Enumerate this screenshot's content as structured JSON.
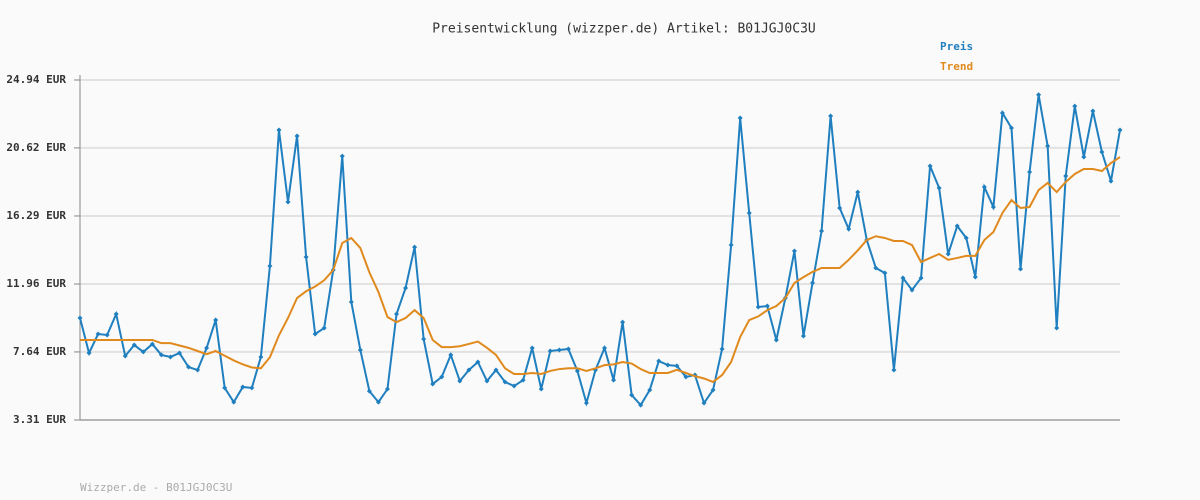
{
  "chart_data": {
    "type": "line",
    "title": "Preisentwicklung (wizzper.de) Artikel: B01JGJ0C3U",
    "footer": "Wizzper.de - B01JGJ0C3U",
    "ylim": [
      3.31,
      24.94
    ],
    "yticks": [
      {
        "value": 3.31,
        "label": "3.31 EUR"
      },
      {
        "value": 7.64,
        "label": "7.64 EUR"
      },
      {
        "value": 11.96,
        "label": "11.96 EUR"
      },
      {
        "value": 16.29,
        "label": "16.29 EUR"
      },
      {
        "value": 20.62,
        "label": "20.62 EUR"
      },
      {
        "value": 24.94,
        "label": "24.94 EUR"
      }
    ],
    "grid": true,
    "legend": "top-right",
    "series": [
      {
        "name": "Preis",
        "color": "#1f7fbf",
        "markers": true,
        "values": [
          9.8,
          7.57,
          8.78,
          8.72,
          10.05,
          7.38,
          8.08,
          7.64,
          8.14,
          7.45,
          7.32,
          7.57,
          6.68,
          6.49,
          7.89,
          9.67,
          5.35,
          4.45,
          5.41,
          5.35,
          7.32,
          13.11,
          21.76,
          17.18,
          21.38,
          13.68,
          8.78,
          9.16,
          12.85,
          20.1,
          10.82,
          7.76,
          5.15,
          4.45,
          5.28,
          10.05,
          11.71,
          14.31,
          8.46,
          5.6,
          6.05,
          7.45,
          5.79,
          6.49,
          7.0,
          5.79,
          6.49,
          5.73,
          5.47,
          5.85,
          7.89,
          5.28,
          7.7,
          7.76,
          7.83,
          6.43,
          4.39,
          6.49,
          7.89,
          5.85,
          9.54,
          4.9,
          4.26,
          5.22,
          7.06,
          6.81,
          6.75,
          6.05,
          6.17,
          4.39,
          5.22,
          7.83,
          14.44,
          22.52,
          16.48,
          10.5,
          10.56,
          8.4,
          11.07,
          14.06,
          8.65,
          12.03,
          15.33,
          22.65,
          16.8,
          15.46,
          17.81,
          14.76,
          12.98,
          12.66,
          6.49,
          12.34,
          11.58,
          12.34,
          19.47,
          18.07,
          13.87,
          15.65,
          14.89,
          12.41,
          18.13,
          16.86,
          22.84,
          21.89,
          12.92,
          19.09,
          24.0,
          20.74,
          9.16,
          18.83,
          23.28,
          20.04,
          22.97,
          20.36,
          18.51,
          21.76
        ]
      },
      {
        "name": "Trend",
        "color": "#e08a1e",
        "markers": false,
        "values": [
          8.4,
          8.4,
          8.4,
          8.4,
          8.4,
          8.4,
          8.4,
          8.4,
          8.4,
          8.2,
          8.2,
          8.05,
          7.9,
          7.7,
          7.5,
          7.7,
          7.4,
          7.1,
          6.85,
          6.65,
          6.6,
          7.3,
          8.7,
          9.8,
          11.07,
          11.5,
          11.8,
          12.2,
          12.85,
          14.57,
          14.89,
          14.25,
          12.7,
          11.45,
          9.86,
          9.54,
          9.8,
          10.3,
          9.8,
          8.4,
          7.95,
          7.95,
          8.0,
          8.15,
          8.3,
          7.9,
          7.45,
          6.6,
          6.24,
          6.24,
          6.3,
          6.24,
          6.43,
          6.55,
          6.6,
          6.6,
          6.43,
          6.6,
          6.8,
          6.85,
          7.0,
          6.9,
          6.55,
          6.3,
          6.3,
          6.3,
          6.5,
          6.3,
          6.1,
          5.95,
          5.73,
          6.17,
          7.0,
          8.59,
          9.67,
          9.9,
          10.3,
          10.56,
          11.07,
          12.03,
          12.4,
          12.73,
          12.98,
          12.98,
          12.98,
          13.5,
          14.1,
          14.76,
          15.0,
          14.89,
          14.7,
          14.7,
          14.44,
          13.36,
          13.62,
          13.87,
          13.5,
          13.62,
          13.75,
          13.75,
          14.76,
          15.27,
          16.48,
          17.3,
          16.8,
          16.86,
          17.94,
          18.39,
          17.81,
          18.45,
          18.96,
          19.28,
          19.28,
          19.15,
          19.66,
          20.04
        ]
      }
    ]
  }
}
